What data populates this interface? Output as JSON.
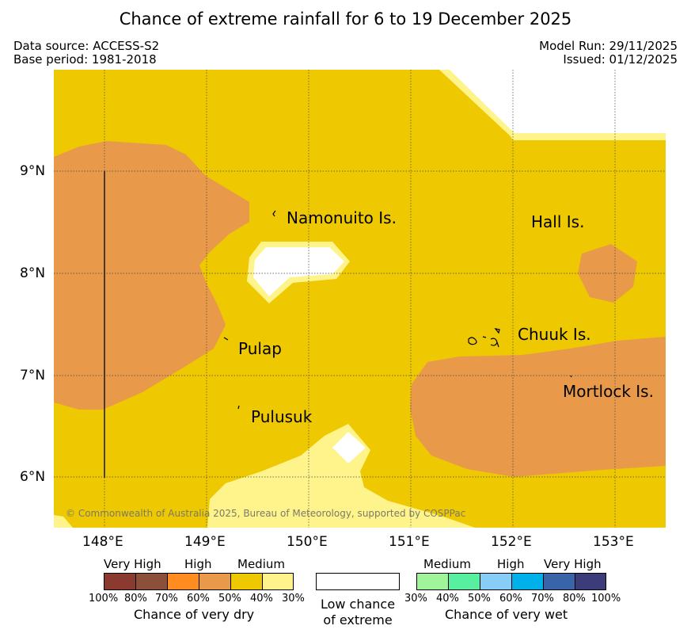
{
  "header": {
    "title": "Chance of extreme rainfall for 6 to 19 December 2025",
    "data_source": "Data source: ACCESS-S2",
    "base_period": "Base period: 1981-2018",
    "model_run": "Model Run: 29/11/2025",
    "issued": "Issued: 01/12/2025"
  },
  "map": {
    "lat_labels": [
      "9°N",
      "8°N",
      "7°N",
      "6°N"
    ],
    "lon_labels": [
      "148°E",
      "149°E",
      "150°E",
      "151°E",
      "152°E",
      "153°E"
    ],
    "places": {
      "namonuito": "Namonuito Is.",
      "hall": "Hall Is.",
      "pulap": "Pulap",
      "chuuk": "Chuuk Is.",
      "mortlock": "Mortlock Is.",
      "pulusuk": "Pulusuk"
    },
    "copyright": "© Commonwealth of Australia 2025, Bureau of Meteorology, supported by COSPPac",
    "colors": {
      "very_high_dry": "#8b3a30",
      "high_dry": "#e8994a",
      "medium_dry": "#eec800",
      "low_dry": "#fff48c",
      "low_chance": "#ffffff"
    }
  },
  "legend": {
    "dry": {
      "categories": [
        "Very High",
        "High",
        "Medium"
      ],
      "ticks": [
        "100%",
        "80%",
        "70%",
        "60%",
        "50%",
        "40%",
        "30%"
      ],
      "caption": "Chance of very dry",
      "colors": [
        "#8b3a30",
        "#8b4f3a",
        "#ff8c20",
        "#e8994a",
        "#eec800",
        "#fff48c"
      ]
    },
    "low": {
      "caption_line1": "Low chance",
      "caption_line2": "of extreme"
    },
    "wet": {
      "categories": [
        "Medium",
        "High",
        "Very High"
      ],
      "ticks": [
        "30%",
        "40%",
        "50%",
        "60%",
        "70%",
        "80%",
        "100%"
      ],
      "caption": "Chance of very wet",
      "colors": [
        "#a0f59a",
        "#58f0a0",
        "#88ccf8",
        "#00b0e8",
        "#3a64a8",
        "#3c3c7a"
      ]
    }
  }
}
